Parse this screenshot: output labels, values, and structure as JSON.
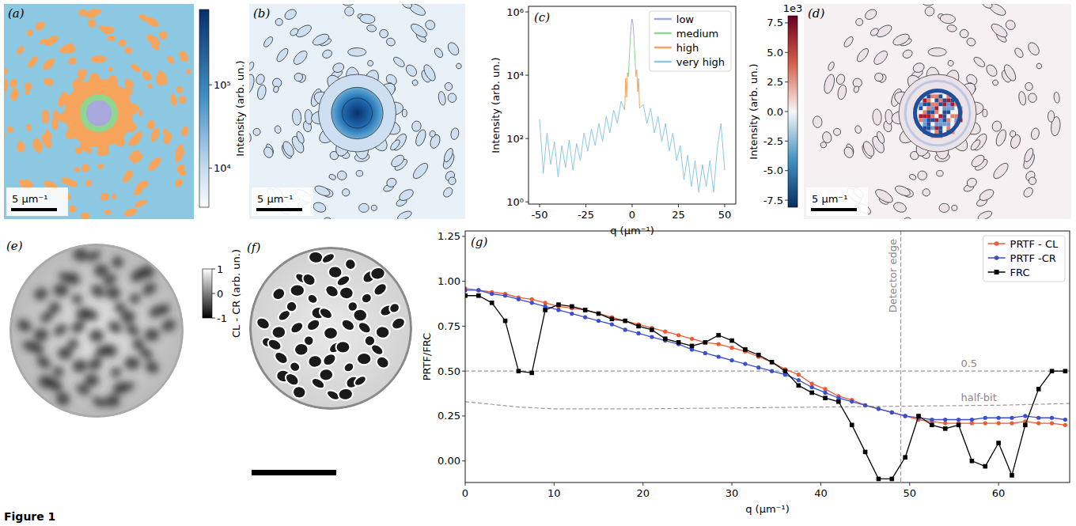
{
  "chart_data": [
    {
      "type": "image",
      "title": "(a)",
      "annotations": [
        "5 μm⁻¹"
      ]
    },
    {
      "type": "image",
      "title": "(b)",
      "annotations": [
        "5 μm⁻¹"
      ],
      "colorbar": {
        "label": "Intensity (arb. un.)",
        "log": true,
        "range": [
          3400,
          800000
        ],
        "ticks": [
          {
            "value": 10000,
            "label": "10⁴"
          },
          {
            "value": 100000,
            "label": "10⁵"
          }
        ]
      }
    },
    {
      "type": "line",
      "title": "(c)",
      "x_label": "q (μm⁻¹)",
      "y_label": "Intensity (arb. un.)",
      "log": "y",
      "xlim": [
        -56,
        56
      ],
      "ylim": [
        0.85,
        1500000
      ],
      "xticks": [
        -50,
        -25,
        0,
        25,
        50
      ],
      "yticks": [
        {
          "value": 1,
          "label": "10⁰"
        },
        {
          "value": 100,
          "label": "10²"
        },
        {
          "value": 10000,
          "label": "10⁴"
        },
        {
          "value": 1000000,
          "label": "10⁶"
        }
      ],
      "legend": "upper right",
      "series": [
        {
          "name": "low",
          "color": "#a9a8dd",
          "x": [
            -1,
            -0.5,
            0,
            0.5,
            1
          ],
          "values": [
            150000,
            400000,
            600000,
            400000,
            150000
          ]
        },
        {
          "name": "medium",
          "color": "#8fd68f",
          "x": [
            -2,
            -1.5,
            -1,
            0,
            1,
            1.5,
            2
          ],
          "values": [
            9000,
            40000,
            150000,
            null,
            150000,
            40000,
            9000
          ]
        },
        {
          "name": "high",
          "color": "#f7a55c",
          "x": [
            -4,
            -3.5,
            -3,
            -2.5,
            -2,
            0,
            2,
            2.5,
            3,
            3.5,
            4
          ],
          "values": [
            800,
            8000,
            2000,
            12000,
            9000,
            null,
            9000,
            15000,
            3000,
            8000,
            900
          ]
        },
        {
          "name": "very high",
          "color": "#8cc8e2",
          "x": [
            -50,
            -48,
            -46,
            -44,
            -42,
            -40,
            -38,
            -36,
            -34,
            -32,
            -30,
            -28,
            -26,
            -24,
            -22,
            -20,
            -18,
            -16,
            -14,
            -12,
            -10,
            -8,
            -6,
            -4,
            0,
            4,
            6,
            8,
            10,
            12,
            14,
            16,
            18,
            20,
            22,
            24,
            26,
            28,
            30,
            32,
            34,
            36,
            38,
            40,
            42,
            44,
            46,
            48,
            50
          ],
          "values": [
            400,
            8,
            150,
            15,
            80,
            6,
            60,
            12,
            90,
            10,
            70,
            20,
            150,
            40,
            200,
            60,
            300,
            80,
            500,
            150,
            800,
            300,
            1500,
            800,
            null,
            900,
            1200,
            300,
            900,
            150,
            500,
            80,
            300,
            40,
            150,
            20,
            60,
            5,
            30,
            3,
            20,
            2,
            15,
            3,
            20,
            2,
            50,
            300,
            10
          ]
        }
      ]
    },
    {
      "type": "image",
      "title": "(d)",
      "annotations": [
        "5 μm⁻¹"
      ],
      "colorbar": {
        "label": "Intensity (arb. un.)",
        "offset_label": "1e3",
        "range": [
          -8.1,
          8.1
        ],
        "ticks": [
          7.5,
          {
            "value": 5,
            "label": "5.0"
          },
          2.5,
          {
            "value": 0,
            "label": "0.0"
          },
          -2.5,
          {
            "value": -5,
            "label": "-5.0"
          },
          -7.5
        ]
      }
    },
    {
      "type": "image",
      "title": "(e)"
    },
    {
      "type": "image",
      "title": "(f)",
      "colorbar": {
        "label": "CL - CR (arb. un.)",
        "range": [
          -1,
          1
        ],
        "ticks": [
          -1,
          0,
          1
        ]
      }
    },
    {
      "type": "line",
      "title": "(g)",
      "x_label": "q (μm⁻¹)",
      "y_label": "PRTF/FRC",
      "xlim": [
        0,
        68
      ],
      "ylim": [
        -0.12,
        1.28
      ],
      "xticks": [
        0,
        10,
        20,
        30,
        40,
        50,
        60
      ],
      "yticks": [
        {
          "value": 0,
          "label": "0.00"
        },
        0.25,
        {
          "value": 0.5,
          "label": "0.50"
        },
        0.75,
        {
          "value": 1,
          "label": "1.00"
        },
        1.25
      ],
      "legend": "upper right",
      "x": [
        0,
        1.5,
        3,
        4.5,
        6,
        7.5,
        9,
        10.5,
        12,
        13.5,
        15,
        16.5,
        18,
        19.5,
        21,
        22.5,
        24,
        25.5,
        27,
        28.5,
        30,
        31.5,
        33,
        34.5,
        36,
        37.5,
        39,
        40.5,
        42,
        43.5,
        45,
        46.5,
        48,
        49.5,
        51,
        52.5,
        54,
        55.5,
        57,
        58.5,
        60,
        61.5,
        63,
        64.5,
        66,
        67.5
      ],
      "series": [
        {
          "name": "PRTF - CL",
          "color": "#ee5a36",
          "marker": "circle",
          "values": [
            0.96,
            0.95,
            0.94,
            0.93,
            0.91,
            0.9,
            0.88,
            0.86,
            0.85,
            0.84,
            0.82,
            0.8,
            0.78,
            0.76,
            0.74,
            0.72,
            0.7,
            0.68,
            0.66,
            0.65,
            0.63,
            0.61,
            0.58,
            0.55,
            0.51,
            0.48,
            0.43,
            0.4,
            0.36,
            0.34,
            0.31,
            0.29,
            0.27,
            0.25,
            0.23,
            0.22,
            0.21,
            0.21,
            0.21,
            0.21,
            0.21,
            0.21,
            0.22,
            0.21,
            0.21,
            0.2
          ]
        },
        {
          "name": "PRTF -CR",
          "color": "#3a4fcf",
          "marker": "circle",
          "values": [
            0.95,
            0.95,
            0.93,
            0.92,
            0.9,
            0.88,
            0.86,
            0.84,
            0.82,
            0.8,
            0.78,
            0.76,
            0.73,
            0.71,
            0.69,
            0.67,
            0.65,
            0.62,
            0.6,
            0.58,
            0.56,
            0.54,
            0.52,
            0.5,
            0.48,
            0.45,
            0.41,
            0.38,
            0.35,
            0.33,
            0.31,
            0.29,
            0.27,
            0.25,
            0.24,
            0.23,
            0.23,
            0.23,
            0.23,
            0.24,
            0.24,
            0.24,
            0.25,
            0.24,
            0.24,
            0.23
          ]
        },
        {
          "name": "FRC",
          "color": "#000000",
          "marker": "square",
          "values": [
            0.92,
            0.92,
            0.88,
            0.78,
            0.5,
            0.49,
            0.84,
            0.87,
            0.86,
            0.84,
            0.82,
            0.79,
            0.78,
            0.75,
            0.73,
            0.68,
            0.66,
            0.64,
            0.66,
            0.7,
            0.67,
            0.62,
            0.59,
            0.55,
            0.5,
            0.42,
            0.38,
            0.35,
            0.33,
            0.2,
            0.05,
            -0.1,
            -0.1,
            0.02,
            0.25,
            0.2,
            0.18,
            0.2,
            0.0,
            -0.03,
            0.1,
            -0.08,
            0.2,
            0.4,
            0.5,
            0.5
          ]
        }
      ],
      "annotations": [
        {
          "text": "Detector edge",
          "x": 49
        },
        {
          "text": "0.5",
          "y": 0.5
        },
        {
          "text": "half-bit",
          "x": [
            0,
            2,
            4,
            6,
            8,
            10,
            15,
            20,
            30,
            40,
            50,
            60,
            68
          ],
          "values": [
            0.33,
            0.32,
            0.31,
            0.3,
            0.295,
            0.29,
            0.29,
            0.29,
            0.295,
            0.3,
            0.305,
            0.31,
            0.32
          ]
        }
      ]
    }
  ],
  "caption": "Figure 1"
}
